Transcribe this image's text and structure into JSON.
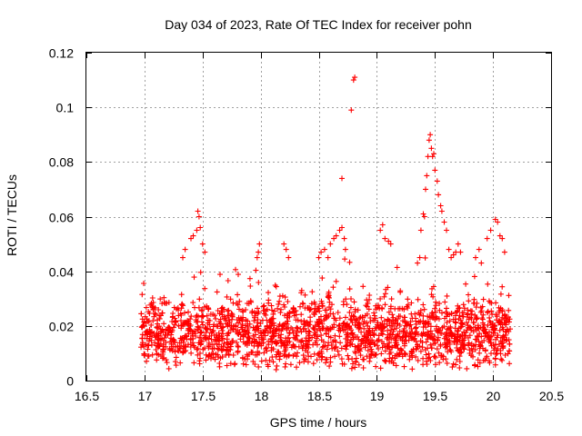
{
  "chart_data": {
    "type": "scatter",
    "title": "Day 034 of 2023, Rate Of TEC Index for receiver pohn",
    "xlabel": "GPS time / hours",
    "ylabel": "ROTI / TECUs",
    "xlim": [
      16.5,
      20.5
    ],
    "ylim": [
      0,
      0.12
    ],
    "xticks": [
      "16.5",
      "17",
      "17.5",
      "18",
      "18.5",
      "19",
      "19.5",
      "20",
      "20.5"
    ],
    "yticks": [
      "0",
      "0.02",
      "0.04",
      "0.06",
      "0.08",
      "0.1",
      "0.12"
    ],
    "grid": true,
    "marker": "+",
    "color": "#ff0000",
    "band": {
      "x_start": 16.97,
      "x_end": 20.15,
      "typical_range": [
        0.007,
        0.03
      ],
      "note": "dense cloud of points spanning 17.0-20.15 h, mostly between 0.005 and 0.03 TECU"
    },
    "series": [
      {
        "name": "ROTI",
        "points": [
          [
            17.4,
            0.052
          ],
          [
            17.42,
            0.053
          ],
          [
            17.45,
            0.055
          ],
          [
            17.46,
            0.062
          ],
          [
            17.47,
            0.06
          ],
          [
            17.48,
            0.056
          ],
          [
            17.5,
            0.05
          ],
          [
            17.52,
            0.047
          ],
          [
            17.35,
            0.048
          ],
          [
            17.33,
            0.045
          ],
          [
            17.99,
            0.05
          ],
          [
            17.98,
            0.047
          ],
          [
            17.97,
            0.045
          ],
          [
            18.2,
            0.05
          ],
          [
            18.22,
            0.048
          ],
          [
            18.24,
            0.045
          ],
          [
            18.5,
            0.045
          ],
          [
            18.52,
            0.047
          ],
          [
            18.55,
            0.048
          ],
          [
            18.58,
            0.045
          ],
          [
            18.6,
            0.05
          ],
          [
            18.63,
            0.052
          ],
          [
            18.65,
            0.053
          ],
          [
            18.68,
            0.055
          ],
          [
            18.7,
            0.056
          ],
          [
            18.72,
            0.052
          ],
          [
            18.73,
            0.048
          ],
          [
            18.7,
            0.074
          ],
          [
            18.78,
            0.099
          ],
          [
            18.8,
            0.11
          ],
          [
            18.81,
            0.111
          ],
          [
            19.03,
            0.055
          ],
          [
            19.05,
            0.057
          ],
          [
            19.07,
            0.052
          ],
          [
            19.1,
            0.051
          ],
          [
            19.12,
            0.05
          ],
          [
            19.35,
            0.043
          ],
          [
            19.37,
            0.045
          ],
          [
            19.38,
            0.055
          ],
          [
            19.4,
            0.061
          ],
          [
            19.41,
            0.06
          ],
          [
            19.42,
            0.07
          ],
          [
            19.43,
            0.075
          ],
          [
            19.44,
            0.082
          ],
          [
            19.45,
            0.088
          ],
          [
            19.46,
            0.09
          ],
          [
            19.47,
            0.085
          ],
          [
            19.48,
            0.082
          ],
          [
            19.49,
            0.083
          ],
          [
            19.5,
            0.077
          ],
          [
            19.52,
            0.073
          ],
          [
            19.53,
            0.068
          ],
          [
            19.55,
            0.064
          ],
          [
            19.56,
            0.062
          ],
          [
            19.58,
            0.058
          ],
          [
            19.6,
            0.055
          ],
          [
            19.62,
            0.048
          ],
          [
            19.64,
            0.045
          ],
          [
            19.66,
            0.046
          ],
          [
            19.68,
            0.047
          ],
          [
            19.7,
            0.05
          ],
          [
            19.72,
            0.047
          ],
          [
            19.85,
            0.045
          ],
          [
            19.88,
            0.048
          ],
          [
            19.9,
            0.043
          ],
          [
            19.95,
            0.052
          ],
          [
            19.98,
            0.055
          ],
          [
            20.02,
            0.059
          ],
          [
            20.04,
            0.058
          ],
          [
            20.06,
            0.053
          ],
          [
            20.08,
            0.052
          ],
          [
            20.1,
            0.047
          ]
        ]
      }
    ]
  }
}
